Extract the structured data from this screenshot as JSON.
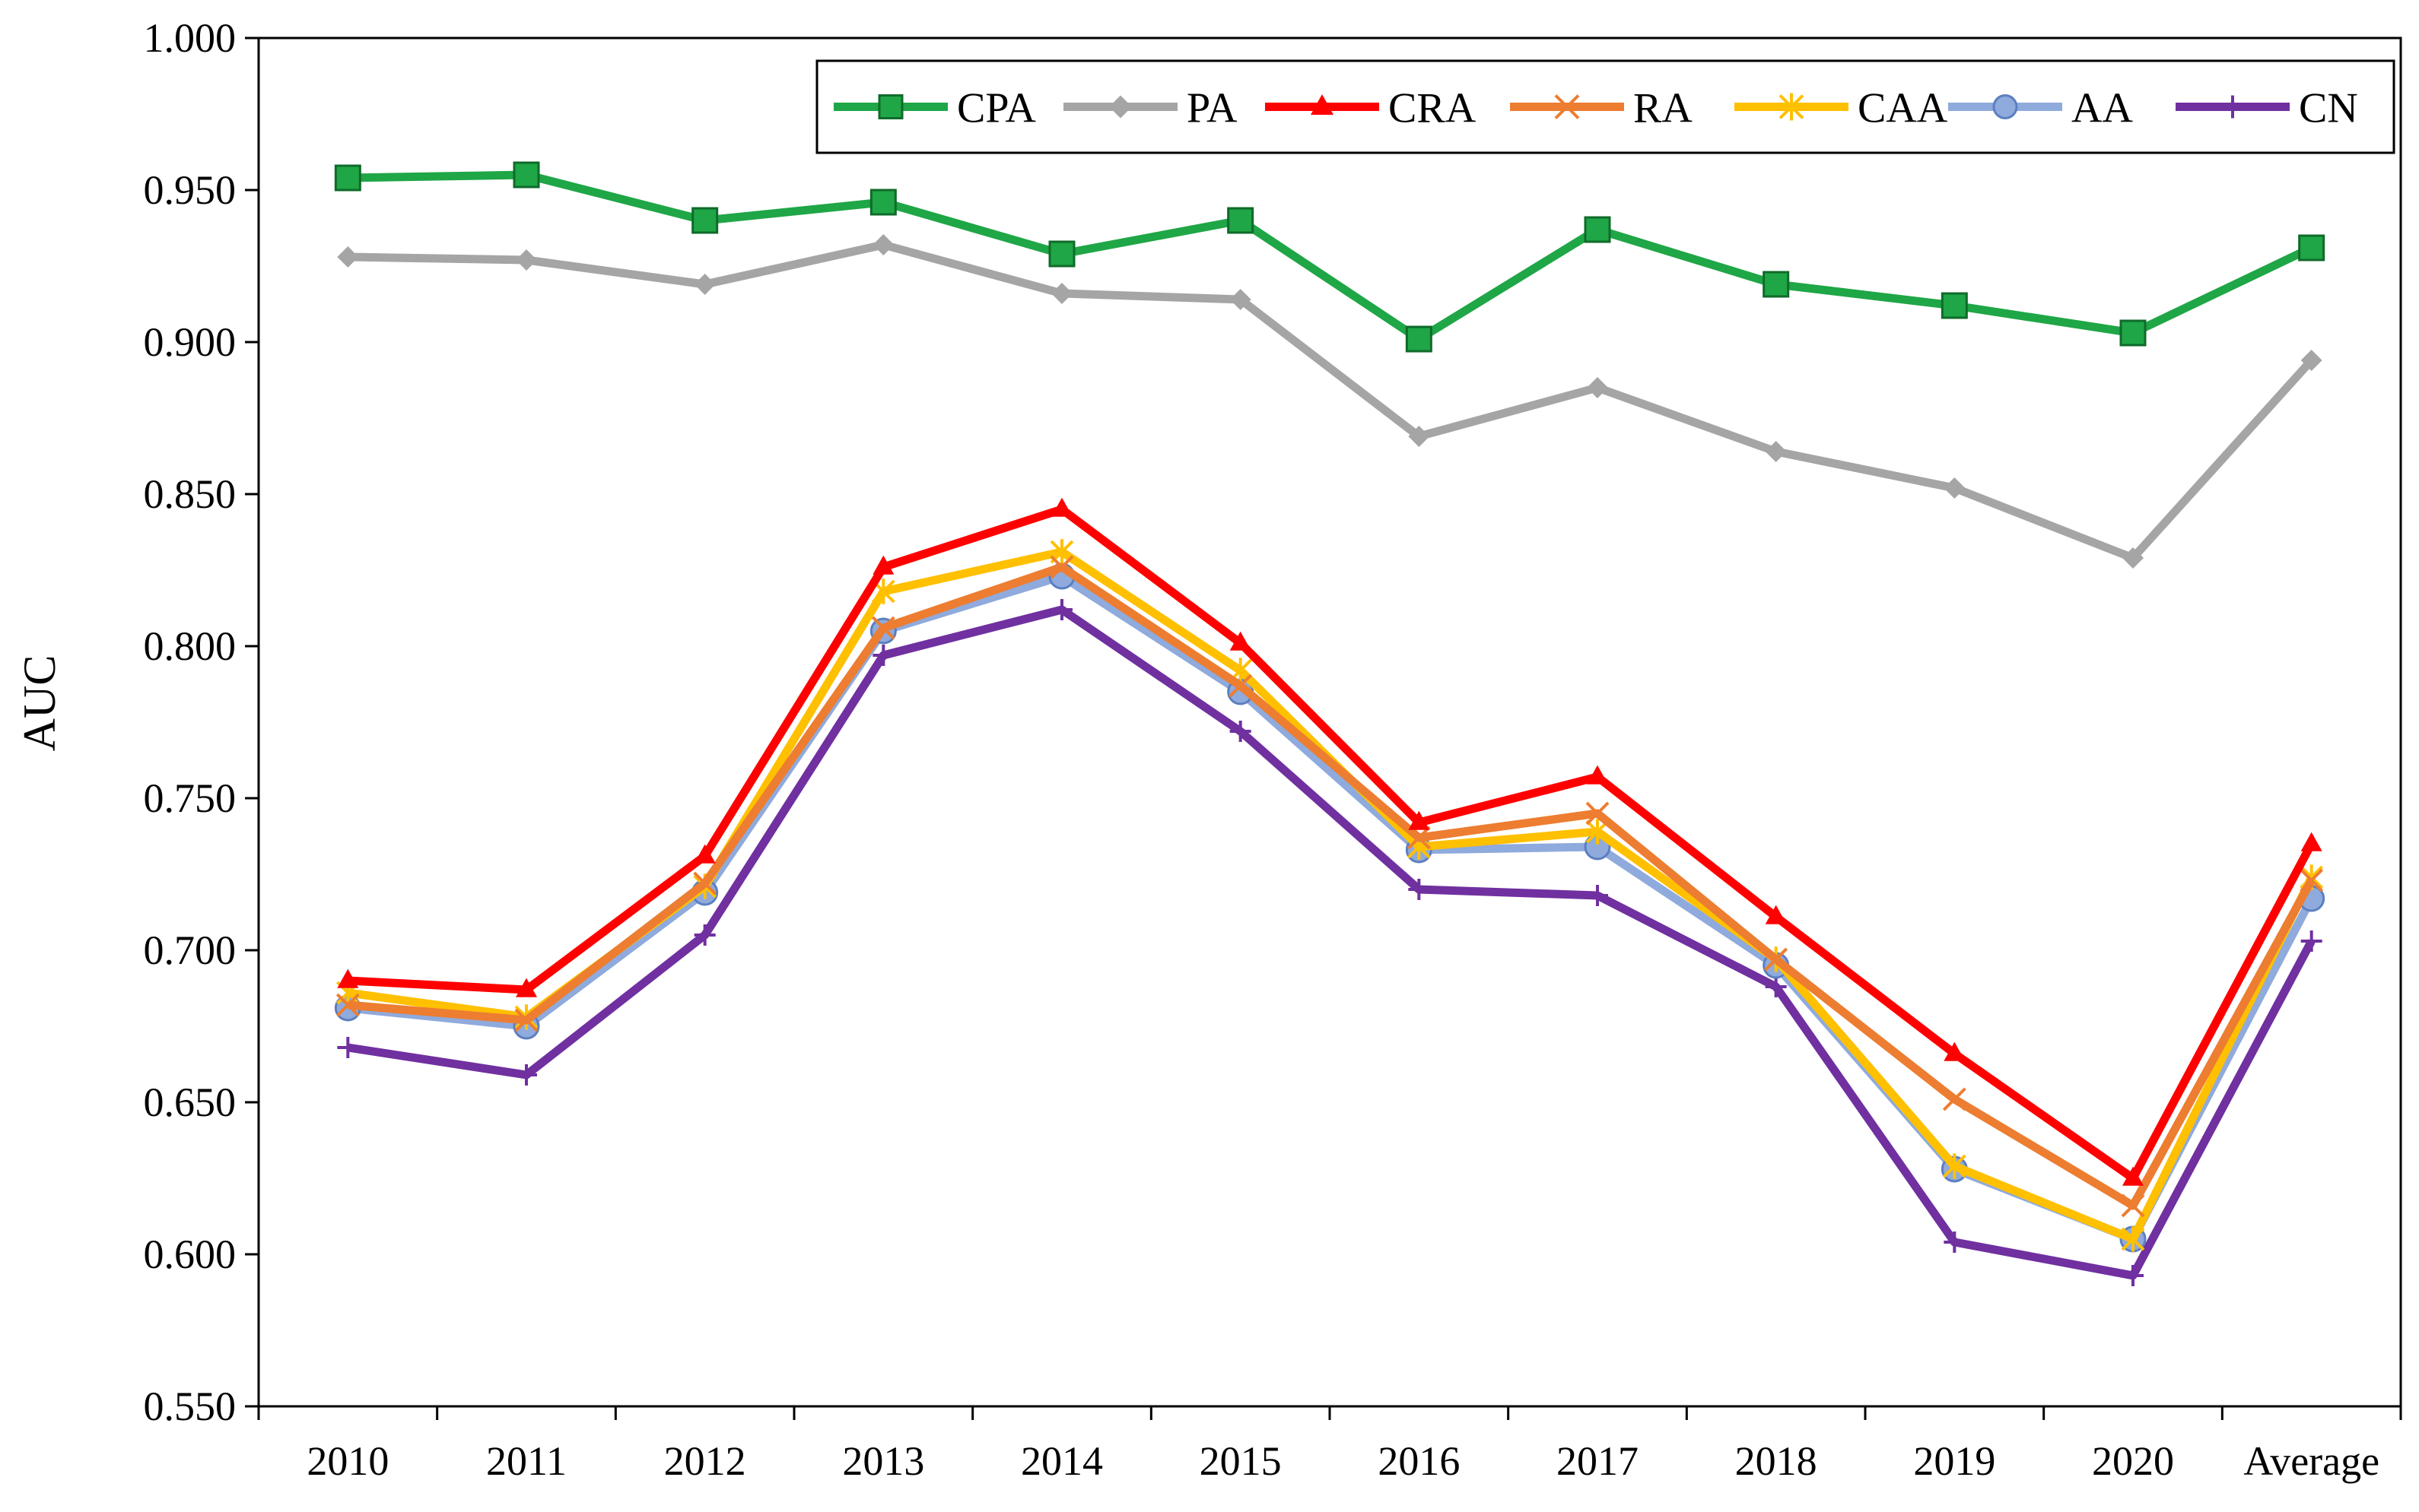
{
  "chart_data": {
    "type": "line",
    "title": "",
    "xlabel": "",
    "ylabel": "AUC",
    "categories": [
      "2010",
      "2011",
      "2012",
      "2013",
      "2014",
      "2015",
      "2016",
      "2017",
      "2018",
      "2019",
      "2020",
      "Average"
    ],
    "ylim": [
      0.55,
      1.0
    ],
    "ytick_labels": [
      "0.550",
      "0.600",
      "0.650",
      "0.700",
      "0.750",
      "0.800",
      "0.850",
      "0.900",
      "0.950",
      "1.000"
    ],
    "grid": false,
    "legend_position": "top-right",
    "series": [
      {
        "name": "CPA",
        "color": "#1fa646",
        "marker": "square",
        "values": [
          0.954,
          0.955,
          0.94,
          0.946,
          0.929,
          0.94,
          0.901,
          0.937,
          0.919,
          0.912,
          0.903,
          0.931
        ]
      },
      {
        "name": "PA",
        "color": "#a5a5a5",
        "marker": "diamond",
        "values": [
          0.928,
          0.927,
          0.919,
          0.932,
          0.916,
          0.914,
          0.869,
          0.885,
          0.864,
          0.852,
          0.829,
          0.894
        ]
      },
      {
        "name": "CRA",
        "color": "#ff0000",
        "marker": "triangle",
        "values": [
          0.69,
          0.687,
          0.731,
          0.826,
          0.845,
          0.801,
          0.742,
          0.757,
          0.711,
          0.666,
          0.625,
          0.735
        ]
      },
      {
        "name": "RA",
        "color": "#ed7d31",
        "marker": "x",
        "values": [
          0.682,
          0.677,
          0.722,
          0.806,
          0.826,
          0.787,
          0.737,
          0.745,
          0.697,
          0.651,
          0.616,
          0.723
        ]
      },
      {
        "name": "CAA",
        "color": "#ffc000",
        "marker": "star",
        "values": [
          0.686,
          0.678,
          0.721,
          0.818,
          0.831,
          0.792,
          0.734,
          0.739,
          0.697,
          0.629,
          0.605,
          0.724
        ]
      },
      {
        "name": "AA",
        "color": "#8faadc",
        "marker": "circle",
        "values": [
          0.681,
          0.675,
          0.719,
          0.805,
          0.823,
          0.785,
          0.733,
          0.734,
          0.695,
          0.628,
          0.605,
          0.717
        ]
      },
      {
        "name": "CN",
        "color": "#7030a0",
        "marker": "plus",
        "values": [
          0.668,
          0.659,
          0.705,
          0.797,
          0.812,
          0.772,
          0.72,
          0.718,
          0.688,
          0.604,
          0.593,
          0.703
        ]
      }
    ]
  }
}
